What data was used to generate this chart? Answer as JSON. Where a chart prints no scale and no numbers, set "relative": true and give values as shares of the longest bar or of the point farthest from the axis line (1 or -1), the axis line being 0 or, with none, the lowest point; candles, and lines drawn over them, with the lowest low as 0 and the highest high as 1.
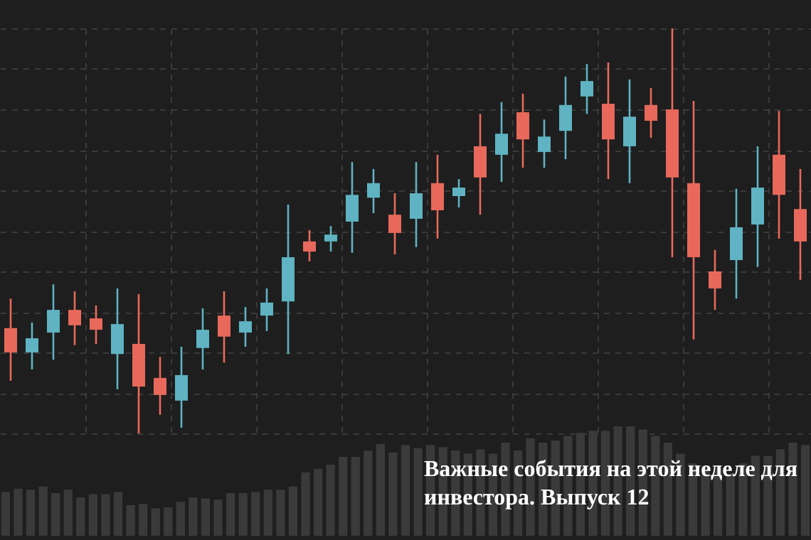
{
  "chart_data": [
    {
      "type": "candlestick",
      "relative": true,
      "grid": true,
      "annotations": [
        "Важные события на этой неделе для инвестора. Выпуск 12"
      ],
      "categories": [
        null,
        null,
        null,
        null,
        null,
        null,
        null,
        null,
        null,
        null,
        null,
        null,
        null,
        null,
        null,
        null,
        null,
        null,
        null,
        null,
        null,
        null,
        null,
        null,
        null,
        null,
        null,
        null,
        null,
        null,
        null,
        null,
        null,
        null,
        null,
        null,
        null,
        null
      ],
      "ohlc": [
        [
          0.26,
          0.333,
          0.13,
          0.2
        ],
        [
          0.2,
          0.274,
          0.158,
          0.235
        ],
        [
          0.249,
          0.368,
          0.182,
          0.305
        ],
        [
          0.305,
          0.351,
          0.218,
          0.267
        ],
        [
          0.284,
          0.316,
          0.221,
          0.256
        ],
        [
          0.196,
          0.358,
          0.109,
          0.27
        ],
        [
          0.221,
          0.344,
          0,
          0.116
        ],
        [
          0.137,
          0.189,
          0.046,
          0.095
        ],
        [
          0.081,
          0.214,
          0.014,
          0.144
        ],
        [
          0.211,
          0.309,
          0.158,
          0.256
        ],
        [
          0.291,
          0.351,
          0.175,
          0.239
        ],
        [
          0.249,
          0.312,
          0.214,
          0.277
        ],
        [
          0.291,
          0.358,
          0.253,
          0.323
        ],
        [
          0.326,
          0.565,
          0.196,
          0.435
        ],
        [
          0.474,
          0.502,
          0.425,
          0.449
        ],
        [
          0.474,
          0.512,
          0.449,
          0.491
        ],
        [
          0.523,
          0.67,
          0.446,
          0.589
        ],
        [
          0.582,
          0.653,
          0.544,
          0.618
        ],
        [
          0.54,
          0.593,
          0.442,
          0.495
        ],
        [
          0.53,
          0.67,
          0.46,
          0.593
        ],
        [
          0.618,
          0.688,
          0.481,
          0.551
        ],
        [
          0.586,
          0.628,
          0.558,
          0.607
        ],
        [
          0.709,
          0.789,
          0.54,
          0.632
        ],
        [
          0.688,
          0.818,
          0.621,
          0.74
        ],
        [
          0.793,
          0.839,
          0.656,
          0.726
        ],
        [
          0.695,
          0.775,
          0.656,
          0.733
        ],
        [
          0.747,
          0.881,
          0.677,
          0.811
        ],
        [
          0.832,
          0.912,
          0.789,
          0.87
        ],
        [
          0.814,
          0.916,
          0.628,
          0.726
        ],
        [
          0.709,
          0.874,
          0.618,
          0.782
        ],
        [
          0.811,
          0.853,
          0.73,
          0.772
        ],
        [
          0.8,
          1,
          0.435,
          0.632
        ],
        [
          0.618,
          0.821,
          0.232,
          0.435
        ],
        [
          0.4,
          0.453,
          0.305,
          0.358
        ],
        [
          0.428,
          0.604,
          0.333,
          0.509
        ],
        [
          0.516,
          0.709,
          0.411,
          0.607
        ],
        [
          0.688,
          0.796,
          0.481,
          0.589
        ],
        [
          0.554,
          0.653,
          0.379,
          0.474
        ]
      ],
      "colors": [
        "#e8695b",
        "#5fb3c2",
        "#5fb3c2",
        "#e8695b",
        "#e8695b",
        "#5fb3c2",
        "#e8695b",
        "#e8695b",
        "#5fb3c2",
        "#5fb3c2",
        "#e8695b",
        "#5fb3c2",
        "#5fb3c2",
        "#5fb3c2",
        "#e8695b",
        "#5fb3c2",
        "#5fb3c2",
        "#5fb3c2",
        "#e8695b",
        "#5fb3c2",
        "#e8695b",
        "#5fb3c2",
        "#e8695b",
        "#5fb3c2",
        "#e8695b",
        "#5fb3c2",
        "#5fb3c2",
        "#5fb3c2",
        "#e8695b",
        "#5fb3c2",
        "#e8695b",
        "#e8695b",
        "#e8695b",
        "#e8695b",
        "#5fb3c2",
        "#5fb3c2",
        "#e8695b",
        "#e8695b"
      ]
    },
    {
      "type": "bar",
      "relative": true,
      "color": "#3a3a3a",
      "categories": [
        null,
        null,
        null,
        null,
        null,
        null,
        null,
        null,
        null,
        null,
        null,
        null,
        null,
        null,
        null,
        null,
        null,
        null,
        null,
        null,
        null,
        null,
        null,
        null,
        null,
        null,
        null,
        null,
        null,
        null,
        null,
        null,
        null,
        null,
        null,
        null,
        null,
        null,
        null,
        null,
        null,
        null,
        null,
        null,
        null,
        null,
        null,
        null,
        null,
        null,
        null,
        null,
        null,
        null,
        null,
        null,
        null,
        null,
        null,
        null,
        null,
        null,
        null,
        null,
        null
      ],
      "values": [
        0.4,
        0.43,
        0.42,
        0.45,
        0.39,
        0.42,
        0.35,
        0.38,
        0.38,
        0.4,
        0.28,
        0.29,
        0.25,
        0.26,
        0.31,
        0.35,
        0.34,
        0.33,
        0.39,
        0.39,
        0.4,
        0.42,
        0.42,
        0.45,
        0.58,
        0.61,
        0.65,
        0.72,
        0.72,
        0.78,
        0.84,
        0.76,
        0.83,
        0.8,
        0.83,
        0.81,
        0.78,
        0.75,
        0.79,
        0.75,
        0.85,
        0.78,
        0.89,
        0.85,
        0.87,
        0.91,
        0.94,
        0.96,
        0.96,
        1,
        1,
        0.97,
        0.91,
        0.85,
        0.75,
        0.66,
        0.64,
        0.62,
        0.57,
        0.66,
        0.73,
        0.73,
        0.79,
        0.85,
        0.83
      ]
    }
  ]
}
